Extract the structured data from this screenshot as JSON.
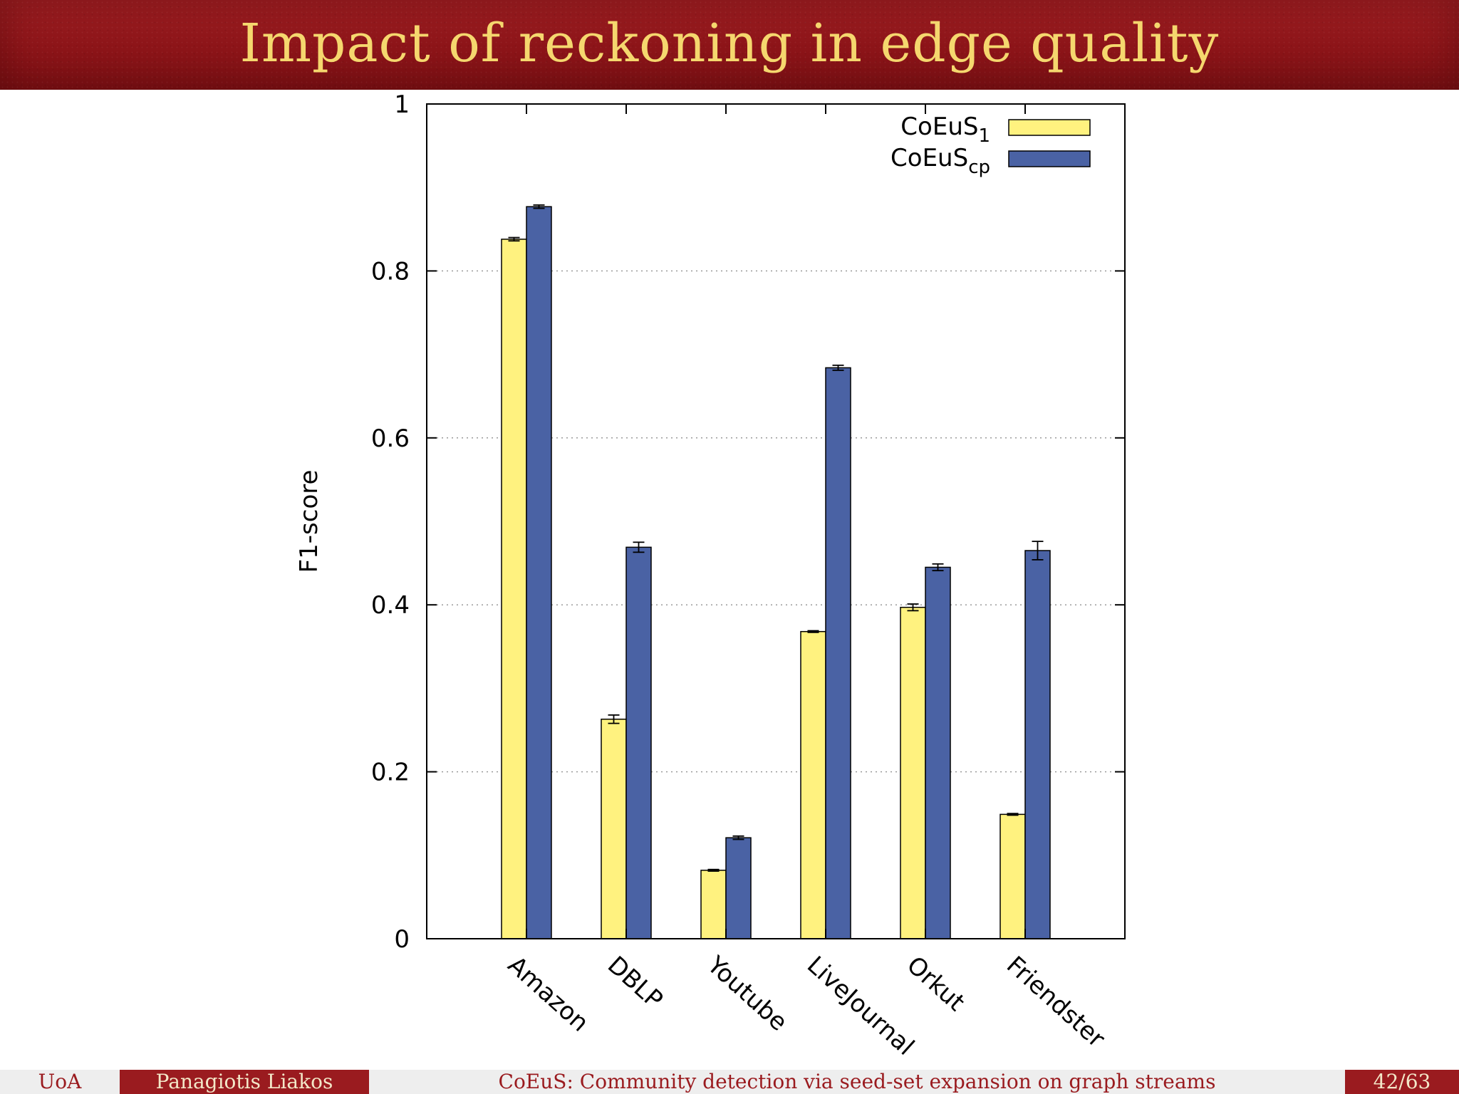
{
  "slide": {
    "title": "Impact of reckoning in edge quality"
  },
  "footer": {
    "institution": "UoA",
    "author": "Panagiotis Liakos",
    "talk_title": "CoEuS: Community detection via seed-set expansion on graph streams",
    "page": "42/63"
  },
  "colors": {
    "title_text": "#f5d76e",
    "title_bar": "#8c1418",
    "series_1": "#fff27f",
    "series_2": "#4a62a4",
    "footer_dark": "#9a1b1f",
    "footer_light": "#eeeeee"
  },
  "chart_data": {
    "type": "bar",
    "title": "",
    "xlabel": "",
    "ylabel": "F1-score",
    "ylim": [
      0,
      1
    ],
    "yticks": [
      "0",
      "0.2",
      "0.4",
      "0.6",
      "0.8",
      "1"
    ],
    "grid": true,
    "legend_position": "top-right",
    "categories": [
      "Amazon",
      "DBLP",
      "Youtube",
      "LiveJournal",
      "Orkut",
      "Friendster"
    ],
    "series": [
      {
        "name": "CoEuS",
        "subscript": "1",
        "values": [
          0.838,
          0.263,
          0.082,
          0.368,
          0.397,
          0.149
        ],
        "errors": [
          0.002,
          0.005,
          0.001,
          0.001,
          0.004,
          0.001
        ]
      },
      {
        "name": "CoEuS",
        "subscript": "cp",
        "values": [
          0.877,
          0.469,
          0.121,
          0.684,
          0.445,
          0.465
        ],
        "errors": [
          0.002,
          0.006,
          0.002,
          0.003,
          0.004,
          0.011
        ]
      }
    ]
  }
}
